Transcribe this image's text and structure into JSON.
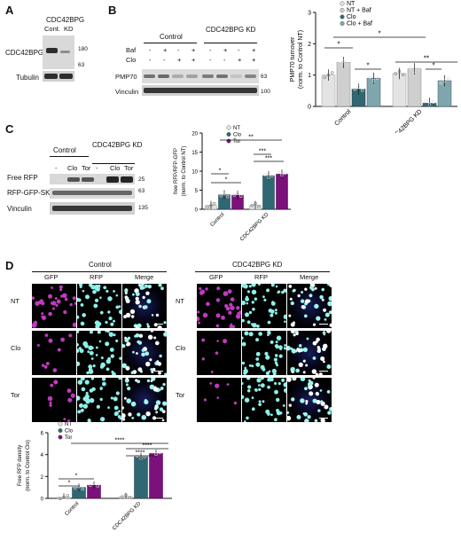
{
  "panels": {
    "A": "A",
    "B": "B",
    "C": "C",
    "D": "D"
  },
  "panelA": {
    "title": "CDC42BPG",
    "lane_labels": [
      "Cont.",
      "KD"
    ],
    "rows": [
      "CDC42BPG",
      "Tubulin"
    ],
    "markers": [
      "180",
      "63"
    ]
  },
  "panelB": {
    "groups": [
      "Control",
      "CDC42BPG KD"
    ],
    "cond_rows": [
      "Baf",
      "Clo"
    ],
    "baf_signs": [
      "-",
      "+",
      "-",
      "+",
      "-",
      "+",
      "-",
      "+"
    ],
    "clo_signs": [
      "-",
      "-",
      "+",
      "+",
      "-",
      "-",
      "+",
      "+"
    ],
    "rows": [
      "PMP70",
      "Vinculin"
    ],
    "markers": [
      "63",
      "100"
    ]
  },
  "panelC": {
    "groups": [
      "Control",
      "CDC42BPG KD"
    ],
    "lanes": [
      "-",
      "Clo",
      "Tor",
      "-",
      "Clo",
      "Tor"
    ],
    "rows": [
      "Free RFP",
      "RFP-GFP-SKL",
      "Vinculin"
    ],
    "markers": [
      "25",
      "63",
      "135"
    ]
  },
  "panelD": {
    "groups": [
      "Control",
      "CDC42BPG KD"
    ],
    "channels": [
      "GFP",
      "RFP",
      "Merge"
    ],
    "conditions": [
      "NT",
      "Clo",
      "Tor"
    ]
  },
  "colors": {
    "nt": "#e3e3e3",
    "clo": "#2f6872",
    "tor": "#7b117b",
    "baf_light": "#cfcfcf",
    "baf_dark": "#7fa6ac"
  },
  "chart_data": [
    {
      "type": "bar",
      "id": "B",
      "ylabel": "PMP70 turnover",
      "ylabel2": "(norm. to Control NT)",
      "ylim": [
        0,
        3
      ],
      "yticks": [
        "0",
        "1",
        "2",
        "3"
      ],
      "categories": [
        "Control",
        "CDC42BPG KD"
      ],
      "legend": [
        "NT",
        "NT + Baf",
        "Clo",
        "Clo + Baf"
      ],
      "series": [
        {
          "name": "NT",
          "values": [
            1.0,
            1.05
          ]
        },
        {
          "name": "NT + Baf",
          "values": [
            1.4,
            1.2
          ]
        },
        {
          "name": "Clo",
          "values": [
            0.55,
            0.1
          ]
        },
        {
          "name": "Clo + Baf",
          "values": [
            0.9,
            0.82
          ]
        }
      ],
      "sig": [
        "*",
        "*",
        "*",
        "*",
        "**"
      ]
    },
    {
      "type": "bar",
      "id": "C",
      "ylabel": "free RFP/RFP-GFP",
      "ylabel2": "(norm. to Control NT)",
      "ylim": [
        0,
        20
      ],
      "yticks": [
        "0",
        "5",
        "10",
        "15",
        "20"
      ],
      "categories": [
        "Control",
        "CDC42BPG KD"
      ],
      "legend": [
        "NT",
        "Clo",
        "Tor"
      ],
      "series": [
        {
          "name": "NT",
          "values": [
            1.0,
            1.0
          ]
        },
        {
          "name": "Clo",
          "values": [
            3.8,
            8.8
          ]
        },
        {
          "name": "Tor",
          "values": [
            3.7,
            9.2
          ]
        }
      ],
      "sig": [
        "*",
        "*",
        "**",
        "***",
        "***"
      ]
    },
    {
      "type": "bar",
      "id": "D",
      "ylabel": "Free RFP density",
      "ylabel2": "(norm. to Control Clo)",
      "ylim": [
        0,
        6
      ],
      "yticks": [
        "0",
        "2",
        "4",
        "6"
      ],
      "categories": [
        "Control",
        "CDC42BPG KD"
      ],
      "legend": [
        "NT",
        "Clo",
        "Tor"
      ],
      "series": [
        {
          "name": "NT",
          "values": [
            0.1,
            0.15
          ]
        },
        {
          "name": "Clo",
          "values": [
            1.0,
            3.8
          ]
        },
        {
          "name": "Tor",
          "values": [
            1.2,
            4.1
          ]
        }
      ],
      "sig": [
        "*",
        "*",
        "****",
        "****",
        "****"
      ]
    }
  ]
}
